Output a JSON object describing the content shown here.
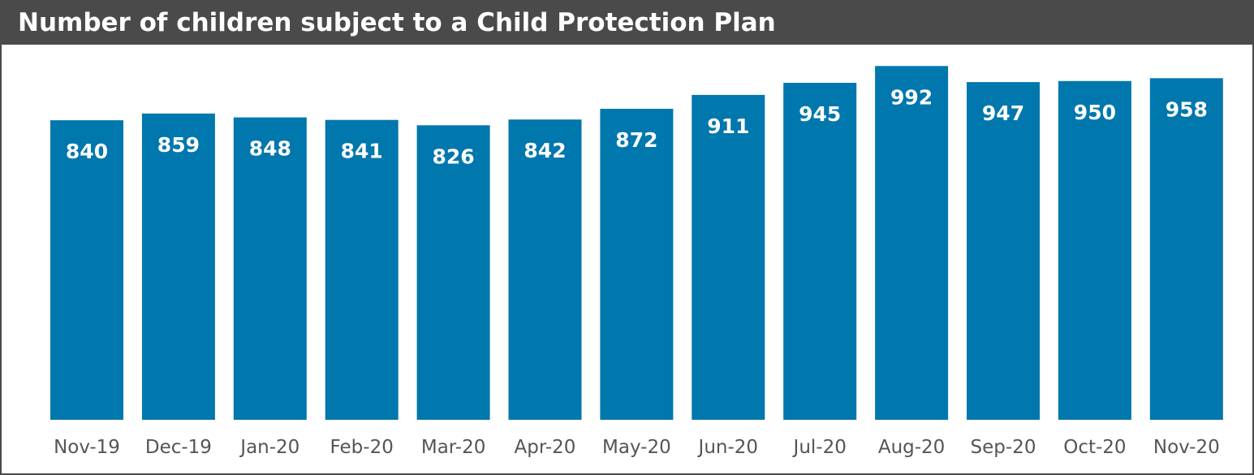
{
  "title": "Number of children subject to a Child Protection Plan",
  "colors": {
    "bar": "#0077ad",
    "title_bg": "#4a4a4a",
    "title_text": "#ffffff",
    "tick_text": "#555555"
  },
  "chart_data": {
    "type": "bar",
    "title": "Number of children subject to a Child Protection Plan",
    "categories": [
      "Nov-19",
      "Dec-19",
      "Jan-20",
      "Feb-20",
      "Mar-20",
      "Apr-20",
      "May-20",
      "Jun-20",
      "Jul-20",
      "Aug-20",
      "Sep-20",
      "Oct-20",
      "Nov-20"
    ],
    "series": [
      {
        "values": [
          840,
          859,
          848,
          841,
          826,
          842,
          872,
          911,
          945,
          992,
          947,
          950,
          958
        ]
      }
    ],
    "data_labels": [
      "840",
      "859",
      "848",
      "841",
      "826",
      "842",
      "872",
      "911",
      "945",
      "992",
      "947",
      "950",
      "958"
    ],
    "xlabel": "",
    "ylabel": "",
    "ylim": [
      0,
      1052
    ],
    "grid": false,
    "legend": "none",
    "y_axis_visible": false
  }
}
